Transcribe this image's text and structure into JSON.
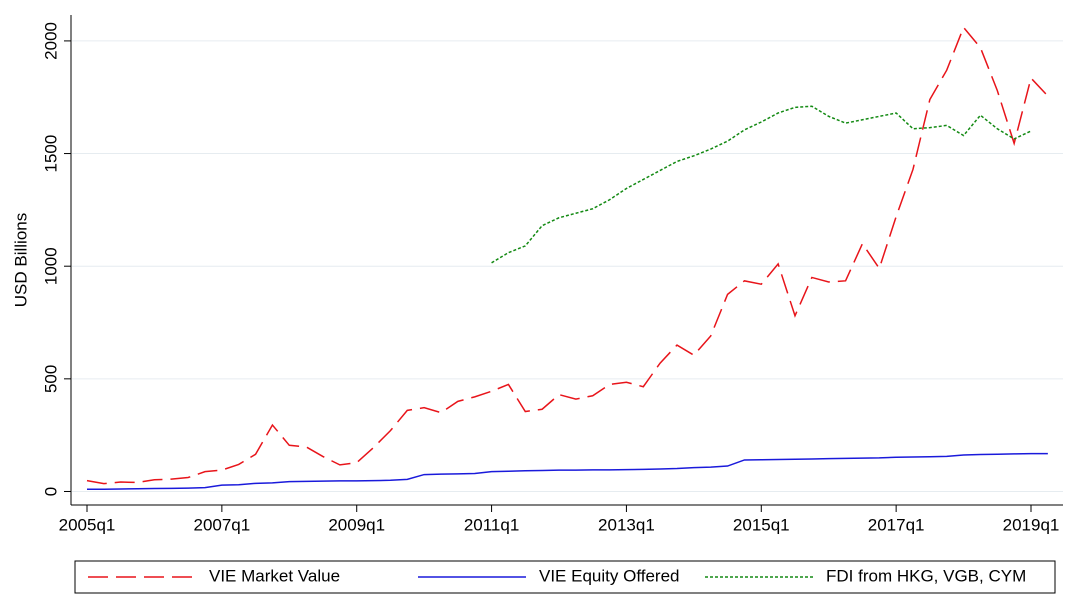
{
  "chart_data": {
    "type": "line",
    "y_label": "USD Billions",
    "categories": [
      "2005q1",
      null,
      null,
      null,
      null,
      null,
      null,
      null,
      "2007q1",
      null,
      null,
      null,
      null,
      null,
      null,
      null,
      "2009q1",
      null,
      null,
      null,
      null,
      null,
      null,
      null,
      "2011q1",
      null,
      null,
      null,
      null,
      null,
      null,
      null,
      "2013q1",
      null,
      null,
      null,
      null,
      null,
      null,
      null,
      "2015q1",
      null,
      null,
      null,
      null,
      null,
      null,
      null,
      "2017q1",
      null,
      null,
      null,
      null,
      null,
      null,
      null,
      "2019q1",
      null
    ],
    "series": [
      {
        "name": "VIE Market Value",
        "color": "#e8141a",
        "dash": "long-dash",
        "values": [
          48,
          35,
          42,
          40,
          52,
          55,
          62,
          88,
          95,
          120,
          165,
          295,
          205,
          198,
          155,
          118,
          128,
          195,
          270,
          360,
          372,
          350,
          400,
          420,
          445,
          475,
          355,
          365,
          430,
          410,
          425,
          475,
          485,
          465,
          570,
          650,
          605,
          690,
          875,
          935,
          920,
          1010,
          780,
          950,
          930,
          935,
          1100,
          990,
          1220,
          1430,
          1740,
          1870,
          2060,
          1970,
          1780,
          1545,
          1835,
          1755
        ]
      },
      {
        "name": "VIE Equity Offered",
        "color": "#1a1adb",
        "dash": "solid",
        "values": [
          10,
          10,
          11,
          12,
          13,
          14,
          15,
          17,
          28,
          30,
          36,
          38,
          44,
          45,
          46,
          47,
          47,
          48,
          50,
          54,
          75,
          77,
          78,
          80,
          88,
          90,
          92,
          93,
          95,
          95,
          96,
          96,
          97,
          98,
          100,
          102,
          106,
          108,
          113,
          140,
          141,
          142,
          143,
          144,
          146,
          147,
          148,
          149,
          152,
          153,
          154,
          156,
          162,
          164,
          165,
          167,
          168,
          168
        ]
      },
      {
        "name": "FDI from HKG, VGB, CYM",
        "color": "#138a13",
        "dash": "dot",
        "values": [
          null,
          null,
          null,
          null,
          null,
          null,
          null,
          null,
          null,
          null,
          null,
          null,
          null,
          null,
          null,
          null,
          null,
          null,
          null,
          null,
          null,
          null,
          null,
          null,
          1015,
          1060,
          1090,
          1180,
          1215,
          1235,
          1255,
          1295,
          1345,
          1385,
          1425,
          1465,
          1490,
          1520,
          1555,
          1605,
          1640,
          1680,
          1705,
          1710,
          1665,
          1635,
          1650,
          1665,
          1680,
          1610,
          1615,
          1625,
          1580,
          1670,
          1610,
          1565,
          1600,
          null
        ]
      }
    ],
    "ylim": [
      -60,
      2115
    ],
    "yticks": [
      0,
      500,
      1000,
      1500,
      2000
    ],
    "grid": true,
    "legend": "bottom"
  }
}
